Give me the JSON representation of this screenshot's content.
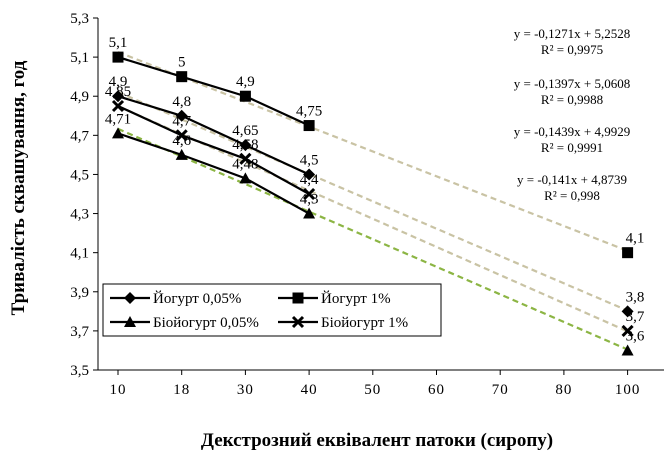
{
  "chart_data": {
    "type": "line",
    "xlabel": "Декстрозний еквівалент патоки (сиропу)",
    "ylabel": "Тривалість сквашування, год",
    "x_ticks": [
      "10",
      "18",
      "30",
      "40",
      "50",
      "60",
      "70",
      "80",
      "100"
    ],
    "y_ticks": [
      "3,5",
      "3,7",
      "3,9",
      "4,1",
      "4,3",
      "4,5",
      "4,7",
      "4,9",
      "5,1",
      "5,3"
    ],
    "ylim": [
      3.5,
      5.3
    ],
    "grid": false,
    "legend_position": "bottom-left",
    "series": [
      {
        "name": "Йогурт 1%",
        "marker": "square",
        "x": [
          "10",
          "18",
          "30",
          "40",
          "100"
        ],
        "values": [
          5.1,
          5.0,
          4.9,
          4.75,
          4.1
        ],
        "labels": [
          "5,1",
          "5",
          "4,9",
          "4,75",
          "4,1"
        ],
        "trend_color": "#c9c3a4",
        "equation": "y = -0,1271x + 5,2528",
        "r2": "R² = 0,9975"
      },
      {
        "name": "Йогурт 0,05%",
        "marker": "diamond",
        "x": [
          "10",
          "18",
          "30",
          "40",
          "100"
        ],
        "values": [
          4.9,
          4.8,
          4.65,
          4.5,
          3.8
        ],
        "labels": [
          "4,9",
          "4,8",
          "4,65",
          "4,5",
          "3,8"
        ],
        "trend_color": "#c9c3a4",
        "equation": "y = -0,1397x + 5,0608",
        "r2": "R² = 0,9988"
      },
      {
        "name": "Біойогурт 1%",
        "marker": "x",
        "x": [
          "10",
          "18",
          "30",
          "40",
          "100"
        ],
        "values": [
          4.85,
          4.7,
          4.58,
          4.4,
          3.7
        ],
        "labels": [
          "4,85",
          "4,7",
          "4,58",
          "4,4",
          "3,7"
        ],
        "trend_color": "#c9c3a4",
        "equation": "y = -0,1439x + 4,9929",
        "r2": "R² = 0,9991"
      },
      {
        "name": "Біойогурт 0,05%",
        "marker": "triangle",
        "x": [
          "10",
          "18",
          "30",
          "40",
          "100"
        ],
        "values": [
          4.71,
          4.6,
          4.48,
          4.3,
          3.6
        ],
        "labels": [
          "4,71",
          "4,6",
          "4,48",
          "4,3",
          "3,6"
        ],
        "trend_color": "#8cb544",
        "equation": "y = -0,141x + 4,8739",
        "r2": "R² = 0,998"
      }
    ],
    "legend": {
      "entries": [
        "Йогурт 0,05%",
        "Йогурт 1%",
        "Біойогурт 0,05%",
        "Біойогурт 1%"
      ]
    }
  }
}
